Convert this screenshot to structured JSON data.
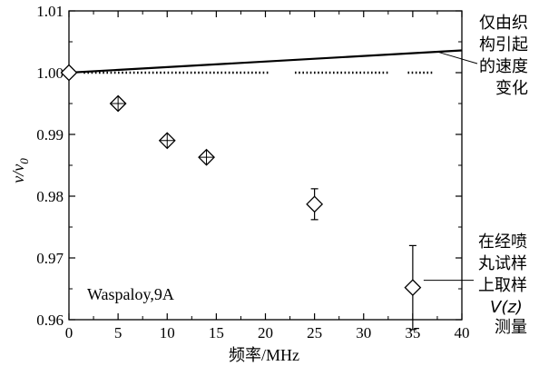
{
  "chart_data": {
    "type": "scatter",
    "title": "",
    "xlabel": "频率/MHz",
    "ylabel_main": "v/v",
    "ylabel_sub": "0",
    "xlim": [
      0,
      40
    ],
    "ylim": [
      0.96,
      1.01
    ],
    "x_ticks": [
      0,
      5,
      10,
      15,
      20,
      25,
      30,
      35,
      40
    ],
    "x_tick_labels": [
      "0",
      "5",
      "10",
      "15",
      "20",
      "25",
      "30",
      "35",
      "40"
    ],
    "y_ticks": [
      0.96,
      0.97,
      0.98,
      0.99,
      1.0,
      1.01
    ],
    "y_tick_labels": [
      "0.96",
      "0.97",
      "0.98",
      "0.99",
      "1.00",
      "1.01"
    ],
    "grid": false,
    "inset_label": "Waspaloy,9A",
    "texture_line": {
      "points": [
        [
          0,
          1.0
        ],
        [
          40,
          1.0036
        ]
      ],
      "annotation": [
        "仅由织",
        "构引起",
        "的速度",
        "变化"
      ]
    },
    "dotted_segments": [
      [
        1.5,
        20.5
      ],
      [
        23.0,
        32.5
      ],
      [
        34.5,
        37.0
      ]
    ],
    "dotted_y": 1.0,
    "series": [
      {
        "values": [
          {
            "x": 0,
            "y": 1.0,
            "err": 0
          },
          {
            "x": 5,
            "y": 0.995,
            "err": 0
          },
          {
            "x": 10,
            "y": 0.989,
            "err": 0
          },
          {
            "x": 14,
            "y": 0.9863,
            "err": 0
          },
          {
            "x": 25,
            "y": 0.9787,
            "err": 0.0025
          },
          {
            "x": 35,
            "y": 0.9652,
            "err": 0.0068
          }
        ]
      }
    ],
    "vz_annotation": [
      "在经喷",
      "丸试样",
      "上取样",
      "V(z)",
      "测量"
    ]
  }
}
